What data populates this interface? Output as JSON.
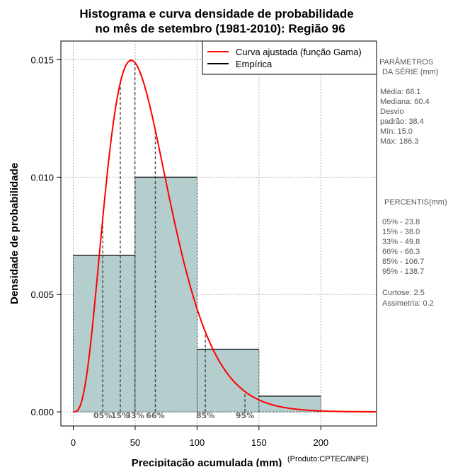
{
  "title_lines": [
    "Histograma e curva densidade de probabilidade",
    "no mês de setembro (1981-2010): Região 96"
  ],
  "credit": "(Produto:CPTEC/INPE)",
  "colors": {
    "bar_fill": "#b4cdcd",
    "curve": "#ff0000",
    "empirical": "#000000",
    "grid": "#b0b0b0",
    "side_text": "#555555"
  },
  "side_panel": {
    "params_title": [
      "PARÂMETROS",
      "DA SÉRIE (mm)"
    ],
    "params": [
      "Média:  68.1",
      "Mediana:  60.4",
      "Desvio",
      "padrão:  38.4",
      "Mín:  15.0",
      "Máx:  186.3"
    ],
    "percentiles_title": "PERCENTIS(mm)",
    "percentiles": [
      "05% -  23.8",
      "15% -  38.0",
      "33% -  49.8",
      "66% -  66.3",
      "85% -  106.7",
      "95% -  138.7"
    ],
    "shape": [
      "Curtose:  2.5",
      "Assimetria:  0.2"
    ]
  },
  "chart_data": {
    "type": "bar",
    "xlabel": "Precipitação acumulada (mm)",
    "ylabel": "Densidade de probabilidade",
    "xlim": [
      -10,
      245
    ],
    "ylim": [
      -0.0006,
      0.0158
    ],
    "x_ticks": [
      0,
      50,
      100,
      150,
      200
    ],
    "x_tick_labels": [
      "0",
      "50",
      "100",
      "150",
      "200"
    ],
    "y_ticks": [
      0.0,
      0.005,
      0.01,
      0.015
    ],
    "y_tick_labels": [
      "0.000",
      "0.005",
      "0.010",
      "0.015"
    ],
    "grid": true,
    "legend_position": "top-right",
    "legend": [
      {
        "label": "Curva ajustada (função Gama)",
        "kind": "curve"
      },
      {
        "label": "Empírica",
        "kind": "empirical"
      }
    ],
    "bins": [
      {
        "x0": 0,
        "x1": 50,
        "density": 0.00667
      },
      {
        "x0": 50,
        "x1": 100,
        "density": 0.01
      },
      {
        "x0": 100,
        "x1": 150,
        "density": 0.00267
      },
      {
        "x0": 150,
        "x1": 200,
        "density": 0.00067
      }
    ],
    "curve": {
      "shape": 4.25,
      "scale": 14.4
    },
    "percentiles": [
      {
        "label": "05%",
        "x": 23.8
      },
      {
        "label": "15%",
        "x": 38.0
      },
      {
        "label": "33%",
        "x": 49.8
      },
      {
        "label": "66%",
        "x": 66.3
      },
      {
        "label": "85%",
        "x": 106.7
      },
      {
        "label": "95%",
        "x": 138.7
      }
    ]
  }
}
